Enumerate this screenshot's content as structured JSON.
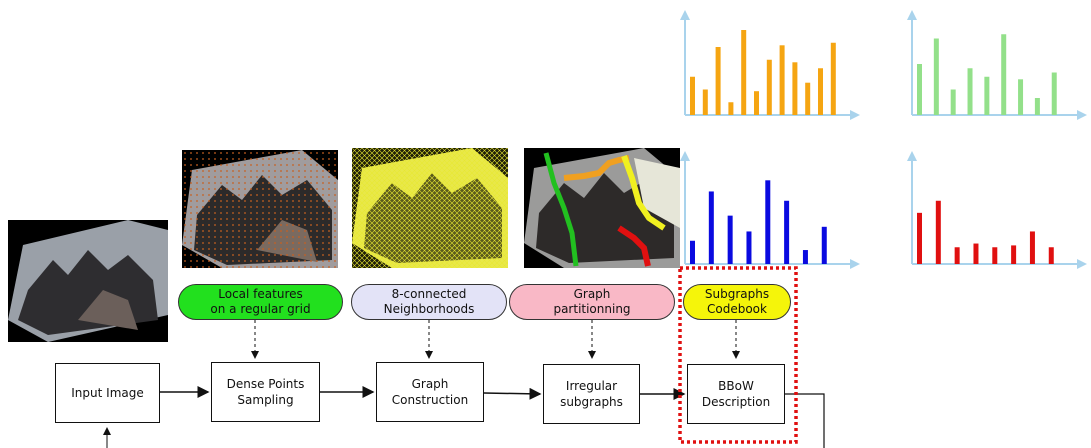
{
  "pipeline": {
    "steps": [
      {
        "label": "Input Image"
      },
      {
        "label": "Dense Points\nSampling"
      },
      {
        "label": "Graph\nConstruction"
      },
      {
        "label": "Irregular\nsubgraphs"
      },
      {
        "label": "BBoW\nDescription"
      }
    ],
    "annotations": [
      {
        "label": "Local features\non a regular grid",
        "color": "#22e01e"
      },
      {
        "label": "8-connected\nNeighborhoods",
        "color": "#e3e3f7"
      },
      {
        "label": "Graph\npartitionning",
        "color": "#f9b8c6"
      },
      {
        "label": "Subgraphs\nCodebook",
        "color": "#f5f50a"
      }
    ],
    "highlight_color": "#e01010"
  },
  "histograms": [
    {
      "color": "#f5a512",
      "values": [
        0.45,
        0.3,
        0.8,
        0.15,
        1.0,
        0.28,
        0.65,
        0.82,
        0.62,
        0.38,
        0.55,
        0.85
      ]
    },
    {
      "color": "#93e08a",
      "values": [
        0.6,
        0.9,
        0.3,
        0.55,
        0.45,
        0.95,
        0.42,
        0.2,
        0.5
      ]
    },
    {
      "color": "#0a0ae0",
      "values": [
        0.25,
        0.78,
        0.52,
        0.35,
        0.9,
        0.68,
        0.15,
        0.4
      ]
    },
    {
      "color": "#e01010",
      "values": [
        0.55,
        0.68,
        0.18,
        0.22,
        0.18,
        0.2,
        0.35,
        0.18
      ]
    }
  ],
  "axis_color": "#a9d3ec"
}
